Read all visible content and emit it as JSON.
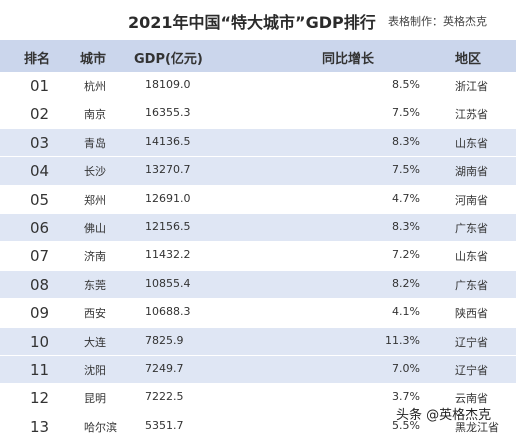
{
  "title": "2021年中国“特大城市”GDP排行",
  "credit": "表格制作：英格杰克",
  "headers": {
    "rank": "排名",
    "city": "城市",
    "gdp": "GDP(亿元)",
    "growth": "同比增长",
    "region": "地区"
  },
  "rows": [
    {
      "rank": "01",
      "city": "杭州",
      "gdp": "18109.0",
      "growth": "8.5%",
      "region": "浙江省"
    },
    {
      "rank": "02",
      "city": "南京",
      "gdp": "16355.3",
      "growth": "7.5%",
      "region": "江苏省"
    },
    {
      "rank": "03",
      "city": "青岛",
      "gdp": "14136.5",
      "growth": "8.3%",
      "region": "山东省"
    },
    {
      "rank": "04",
      "city": "长沙",
      "gdp": "13270.7",
      "growth": "7.5%",
      "region": "湖南省"
    },
    {
      "rank": "05",
      "city": "郑州",
      "gdp": "12691.0",
      "growth": "4.7%",
      "region": "河南省"
    },
    {
      "rank": "06",
      "city": "佛山",
      "gdp": "12156.5",
      "growth": "8.3%",
      "region": "广东省"
    },
    {
      "rank": "07",
      "city": "济南",
      "gdp": "11432.2",
      "growth": "7.2%",
      "region": "山东省"
    },
    {
      "rank": "08",
      "city": "东莞",
      "gdp": "10855.4",
      "growth": "8.2%",
      "region": "广东省"
    },
    {
      "rank": "09",
      "city": "西安",
      "gdp": "10688.3",
      "growth": "4.1%",
      "region": "陕西省"
    },
    {
      "rank": "10",
      "city": "大连",
      "gdp": "7825.9",
      "growth": "11.3%",
      "region": "辽宁省"
    },
    {
      "rank": "11",
      "city": "沈阳",
      "gdp": "7249.7",
      "growth": "7.0%",
      "region": "辽宁省"
    },
    {
      "rank": "12",
      "city": "昆明",
      "gdp": "7222.5",
      "growth": "3.7%",
      "region": "云南省"
    },
    {
      "rank": "13",
      "city": "哈尔滨",
      "gdp": "5351.7",
      "growth": "5.5%",
      "region": "黑龙江省"
    }
  ],
  "alt_rows": [
    2,
    3,
    5,
    7,
    9,
    10
  ],
  "colors": {
    "header_bg": "#cbd6ec",
    "alt_row_bg": "#dfe6f4"
  },
  "watermark": "头条 @英格杰克"
}
